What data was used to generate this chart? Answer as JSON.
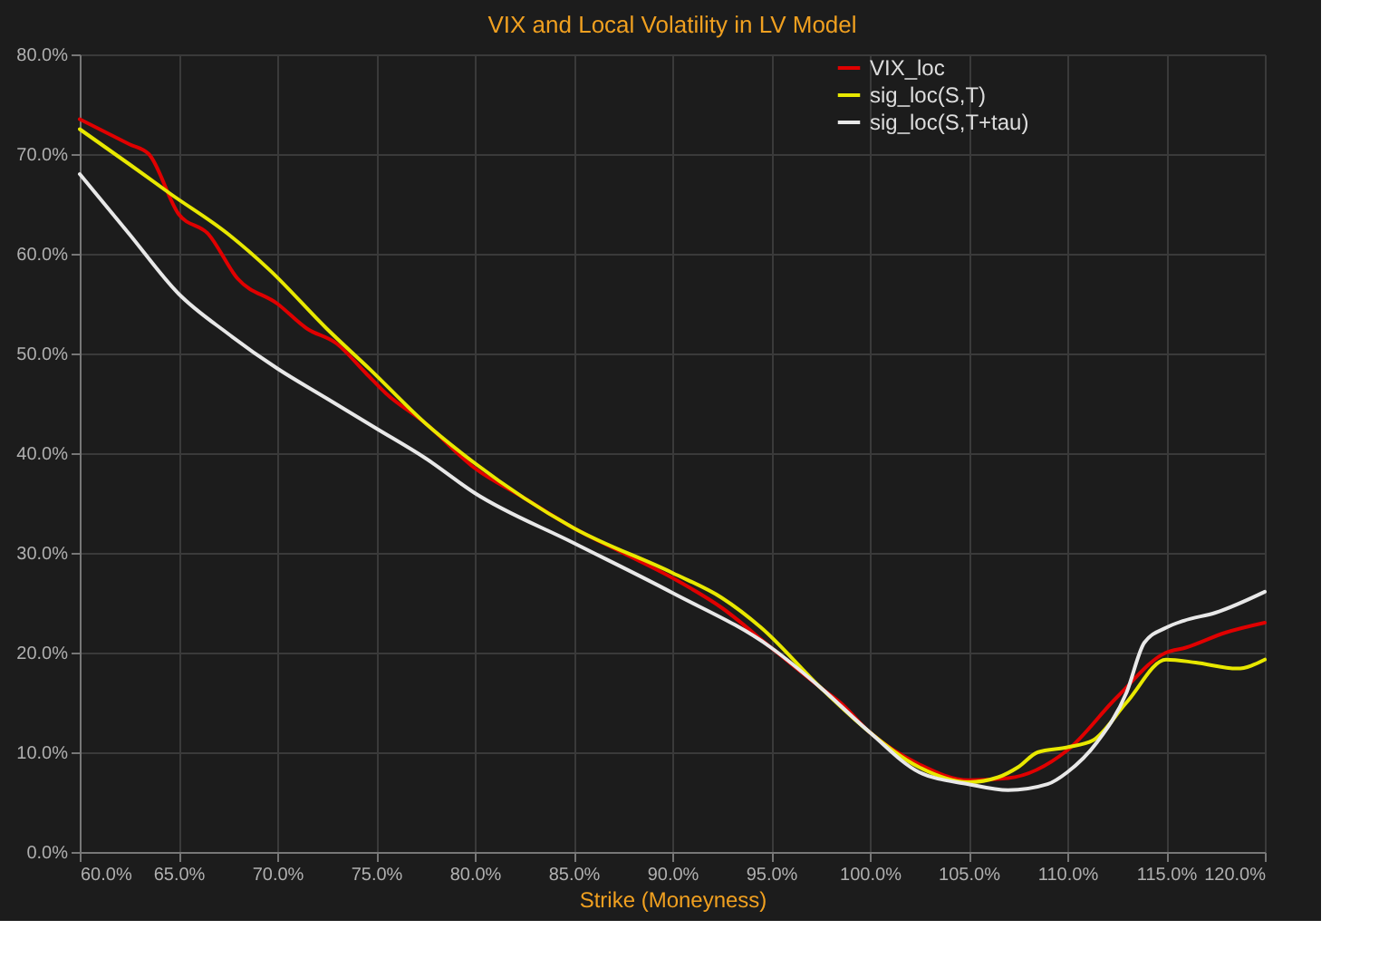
{
  "chart_data": {
    "type": "line",
    "title": "VIX and Local Volatility in LV Model",
    "xlabel": "Strike (Moneyness)",
    "xlim": [
      60,
      120
    ],
    "ylim": [
      0,
      80
    ],
    "xticks": [
      {
        "value": 60,
        "label": "60.0%"
      },
      {
        "value": 65,
        "label": "65.0%"
      },
      {
        "value": 70,
        "label": "70.0%"
      },
      {
        "value": 75,
        "label": "75.0%"
      },
      {
        "value": 80,
        "label": "80.0%"
      },
      {
        "value": 85,
        "label": "85.0%"
      },
      {
        "value": 90,
        "label": "90.0%"
      },
      {
        "value": 95,
        "label": "95.0%"
      },
      {
        "value": 100,
        "label": "100.0%"
      },
      {
        "value": 105,
        "label": "105.0%"
      },
      {
        "value": 110,
        "label": "110.0%"
      },
      {
        "value": 115,
        "label": "115.0%"
      },
      {
        "value": 120,
        "label": "120.0%"
      }
    ],
    "yticks": [
      {
        "value": 0,
        "label": "0.0%"
      },
      {
        "value": 10,
        "label": "10.0%"
      },
      {
        "value": 20,
        "label": "20.0%"
      },
      {
        "value": 30,
        "label": "30.0%"
      },
      {
        "value": 40,
        "label": "40.0%"
      },
      {
        "value": 50,
        "label": "50.0%"
      },
      {
        "value": 60,
        "label": "60.0%"
      },
      {
        "value": 70,
        "label": "70.0%"
      },
      {
        "value": 80,
        "label": "80.0%"
      }
    ],
    "grid": true,
    "legend": "top right",
    "marker": "none",
    "line_style": "solid",
    "series": [
      {
        "name": "VIX_loc",
        "color": "#e00000",
        "x": [
          60,
          62.5,
          63.5,
          65,
          66.5,
          68,
          70,
          71.5,
          73,
          74.5,
          75.5,
          77.5,
          80,
          82.5,
          85,
          87.5,
          90,
          92.5,
          95,
          97.5,
          98.5,
          100,
          102.5,
          105,
          107,
          110,
          112.5,
          115,
          116,
          118,
          120
        ],
        "values": [
          73.5,
          71,
          70,
          64,
          62,
          57.5,
          55,
          52.5,
          51,
          48,
          46,
          43,
          38.5,
          35.5,
          32.5,
          30,
          27.5,
          24.5,
          20.5,
          16.5,
          15,
          12,
          8.8,
          7.2,
          7.4,
          10.2,
          15.5,
          20,
          20.5,
          22,
          23
        ]
      },
      {
        "name": "sig_loc(S,T)",
        "color": "#e8e800",
        "x": [
          60,
          62.5,
          64.6,
          67.5,
          69.6,
          72.5,
          74.7,
          77.5,
          80,
          85,
          90,
          92.5,
          94.5,
          97.5,
          100,
          102.5,
          105,
          106.5,
          107.5,
          108.5,
          110,
          111.3,
          113,
          115,
          116.5,
          118.6,
          120
        ],
        "values": [
          72.5,
          69,
          66,
          62,
          58.4,
          52.5,
          48.4,
          43,
          39,
          32.5,
          28,
          25.5,
          22.5,
          16.5,
          12,
          8.5,
          7,
          7.5,
          8.5,
          10,
          10.5,
          11.2,
          15,
          19.3,
          19,
          18.4,
          19.3
        ]
      },
      {
        "name": "sig_loc(S,T+tau)",
        "color": "#e8e8e8",
        "x": [
          60,
          62.5,
          65,
          67.5,
          70,
          72.5,
          75,
          77.5,
          80,
          85,
          90,
          95,
          97.5,
          100,
          102.5,
          105,
          107,
          109,
          110,
          111.5,
          113,
          113.9,
          115,
          115.9,
          117.5,
          120
        ],
        "values": [
          68,
          62,
          56,
          52,
          48.5,
          45.5,
          42.5,
          39.5,
          36,
          31,
          26,
          20.5,
          16.5,
          12,
          8,
          6.8,
          6.2,
          6.8,
          8,
          11,
          16,
          21,
          22.5,
          23.2,
          24,
          26.1
        ]
      }
    ]
  }
}
